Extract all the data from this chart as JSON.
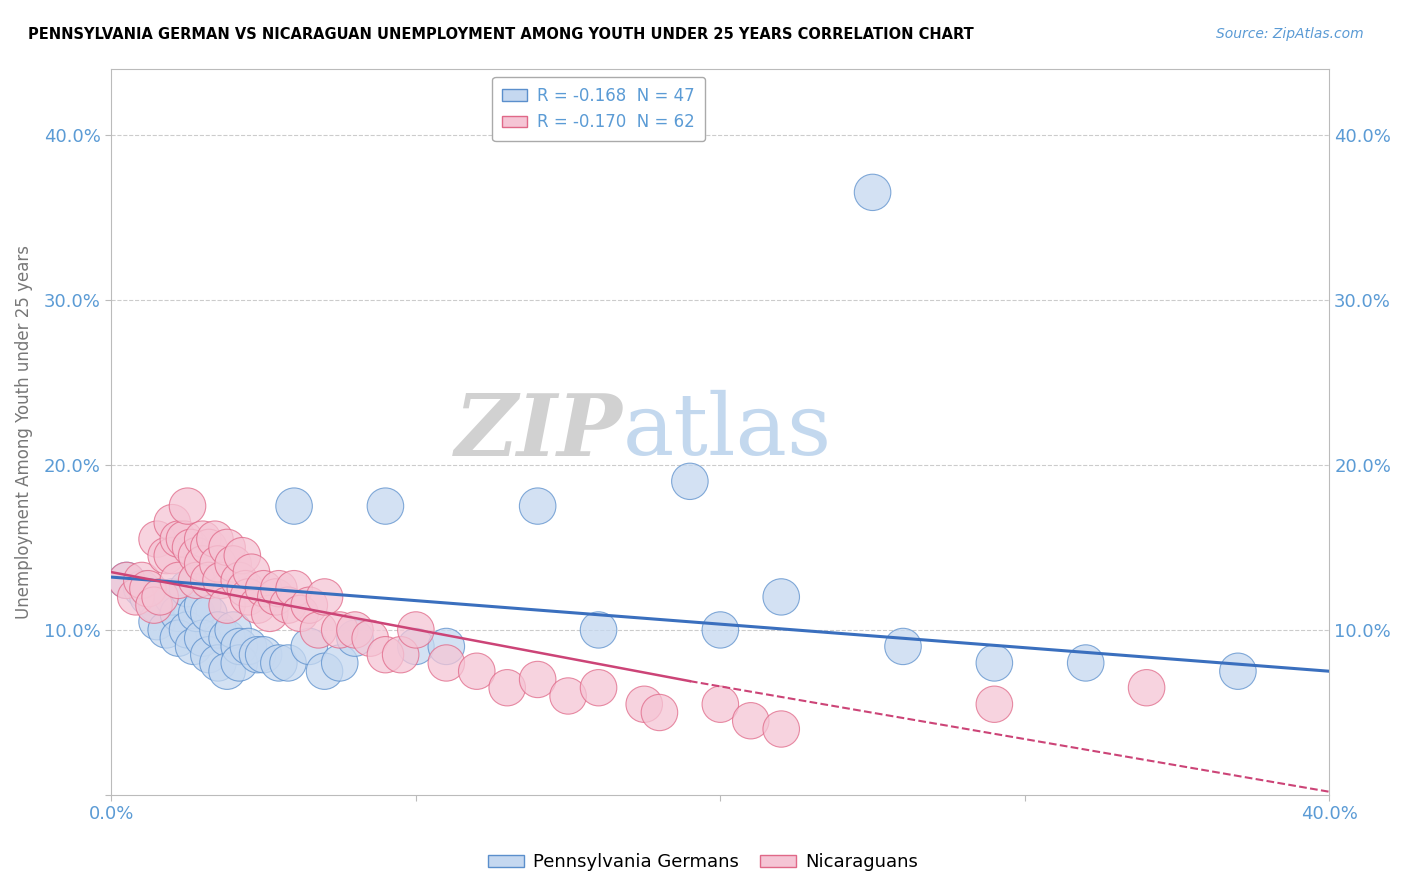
{
  "title": "PENNSYLVANIA GERMAN VS NICARAGUAN UNEMPLOYMENT AMONG YOUTH UNDER 25 YEARS CORRELATION CHART",
  "source": "Source: ZipAtlas.com",
  "ylabel": "Unemployment Among Youth under 25 years",
  "xlim": [
    0.0,
    0.4
  ],
  "ylim": [
    0.0,
    0.44
  ],
  "xticks": [
    0.0,
    0.1,
    0.2,
    0.3,
    0.4
  ],
  "yticks": [
    0.0,
    0.1,
    0.2,
    0.3,
    0.4
  ],
  "blue_R": -0.168,
  "blue_N": 47,
  "pink_R": -0.17,
  "pink_N": 62,
  "blue_fill": "#c5d8f0",
  "pink_fill": "#f5c5d5",
  "blue_edge": "#5b8fcc",
  "pink_edge": "#e06888",
  "blue_line_color": "#3a6fbe",
  "pink_line_color": "#cc4477",
  "legend_label_blue": "Pennsylvania Germans",
  "legend_label_pink": "Nicaraguans",
  "blue_scatter_x": [
    0.005,
    0.01,
    0.012,
    0.015,
    0.015,
    0.018,
    0.02,
    0.022,
    0.022,
    0.025,
    0.025,
    0.027,
    0.028,
    0.03,
    0.03,
    0.032,
    0.032,
    0.035,
    0.035,
    0.038,
    0.038,
    0.04,
    0.042,
    0.042,
    0.045,
    0.048,
    0.05,
    0.055,
    0.058,
    0.06,
    0.065,
    0.07,
    0.075,
    0.08,
    0.09,
    0.1,
    0.11,
    0.14,
    0.16,
    0.19,
    0.2,
    0.22,
    0.25,
    0.26,
    0.29,
    0.32,
    0.37
  ],
  "blue_scatter_y": [
    0.13,
    0.125,
    0.12,
    0.115,
    0.105,
    0.1,
    0.12,
    0.11,
    0.095,
    0.125,
    0.1,
    0.09,
    0.11,
    0.115,
    0.095,
    0.11,
    0.085,
    0.1,
    0.08,
    0.095,
    0.075,
    0.1,
    0.09,
    0.08,
    0.09,
    0.085,
    0.085,
    0.08,
    0.08,
    0.175,
    0.09,
    0.075,
    0.08,
    0.095,
    0.175,
    0.09,
    0.09,
    0.175,
    0.1,
    0.19,
    0.1,
    0.12,
    0.365,
    0.09,
    0.08,
    0.08,
    0.075
  ],
  "pink_scatter_x": [
    0.005,
    0.008,
    0.01,
    0.012,
    0.014,
    0.015,
    0.016,
    0.018,
    0.02,
    0.02,
    0.022,
    0.022,
    0.024,
    0.025,
    0.026,
    0.028,
    0.028,
    0.03,
    0.03,
    0.032,
    0.032,
    0.034,
    0.035,
    0.036,
    0.038,
    0.038,
    0.04,
    0.042,
    0.043,
    0.044,
    0.045,
    0.046,
    0.048,
    0.05,
    0.052,
    0.054,
    0.055,
    0.058,
    0.06,
    0.062,
    0.065,
    0.068,
    0.07,
    0.075,
    0.08,
    0.085,
    0.09,
    0.095,
    0.1,
    0.11,
    0.12,
    0.13,
    0.14,
    0.15,
    0.16,
    0.175,
    0.18,
    0.2,
    0.21,
    0.22,
    0.29,
    0.34
  ],
  "pink_scatter_y": [
    0.13,
    0.12,
    0.13,
    0.125,
    0.115,
    0.155,
    0.12,
    0.145,
    0.165,
    0.145,
    0.155,
    0.13,
    0.155,
    0.175,
    0.15,
    0.145,
    0.13,
    0.155,
    0.14,
    0.15,
    0.13,
    0.155,
    0.14,
    0.13,
    0.15,
    0.115,
    0.14,
    0.13,
    0.145,
    0.125,
    0.12,
    0.135,
    0.115,
    0.125,
    0.11,
    0.12,
    0.125,
    0.115,
    0.125,
    0.11,
    0.115,
    0.1,
    0.12,
    0.1,
    0.1,
    0.095,
    0.085,
    0.085,
    0.1,
    0.08,
    0.075,
    0.065,
    0.07,
    0.06,
    0.065,
    0.055,
    0.05,
    0.055,
    0.045,
    0.04,
    0.055,
    0.065
  ],
  "watermark_zip": "ZIP",
  "watermark_atlas": "atlas",
  "background_color": "#ffffff",
  "grid_color": "#cccccc",
  "tick_color": "#5b9bd5",
  "label_color": "#777777"
}
